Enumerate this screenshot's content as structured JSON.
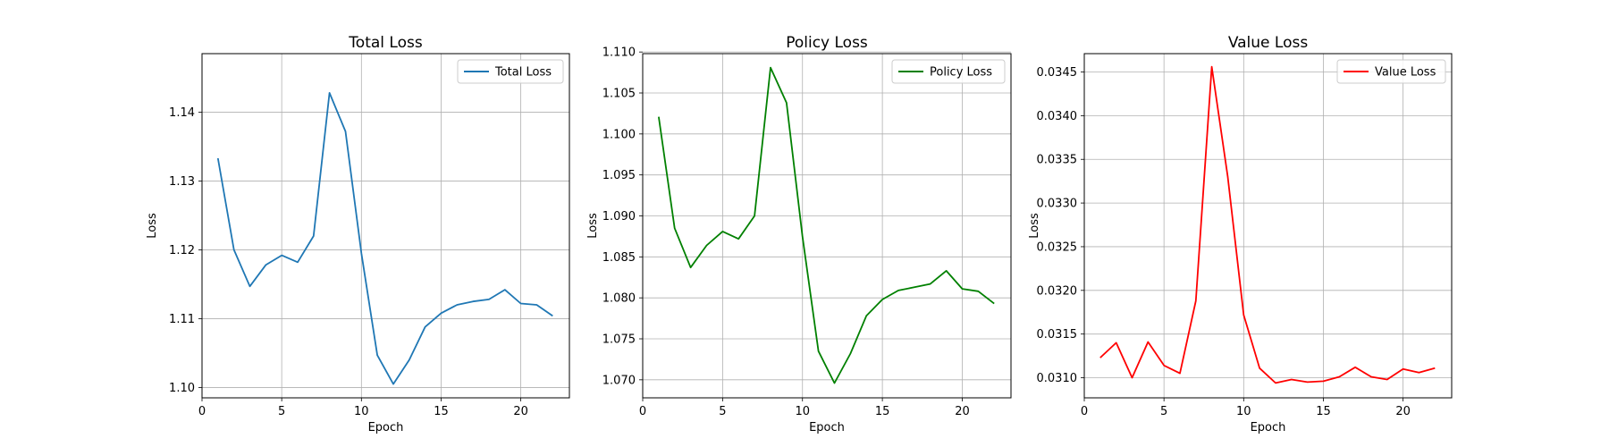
{
  "chart_data": [
    {
      "type": "line",
      "title": "Total Loss",
      "xlabel": "Epoch",
      "ylabel": "Loss",
      "xlim": [
        0,
        23.05
      ],
      "ylim": [
        1.0985,
        1.1485
      ],
      "xticks": [
        0,
        5,
        10,
        15,
        20
      ],
      "yticks": [
        1.1,
        1.11,
        1.12,
        1.13,
        1.14
      ],
      "ytick_labels": [
        "1.10",
        "1.11",
        "1.12",
        "1.13",
        "1.14"
      ],
      "grid": true,
      "legend": "top-right",
      "series": [
        {
          "name": "Total Loss",
          "color": "#1f77b4",
          "x": [
            1,
            2,
            3,
            4,
            5,
            6,
            7,
            8,
            9,
            10,
            11,
            12,
            13,
            14,
            15,
            16,
            17,
            18,
            19,
            20,
            21,
            22
          ],
          "values": [
            1.1333,
            1.12,
            1.1147,
            1.1178,
            1.1192,
            1.1182,
            1.122,
            1.1428,
            1.1372,
            1.1195,
            1.1047,
            1.1005,
            1.104,
            1.1088,
            1.1108,
            1.112,
            1.1125,
            1.1128,
            1.1142,
            1.1122,
            1.112,
            1.1104
          ]
        }
      ]
    },
    {
      "type": "line",
      "title": "Policy Loss",
      "xlabel": "Epoch",
      "ylabel": "Loss",
      "xlim": [
        0,
        23.05
      ],
      "ylim": [
        1.0678,
        1.1098
      ],
      "xticks": [
        0,
        5,
        10,
        15,
        20
      ],
      "yticks": [
        1.07,
        1.075,
        1.08,
        1.085,
        1.09,
        1.095,
        1.1,
        1.105,
        1.11
      ],
      "ytick_labels": [
        "1.070",
        "1.075",
        "1.080",
        "1.085",
        "1.090",
        "1.095",
        "1.100",
        "1.105",
        "1.110"
      ],
      "grid": true,
      "legend": "top-right",
      "series": [
        {
          "name": "Policy Loss",
          "color": "#008000",
          "x": [
            1,
            2,
            3,
            4,
            5,
            6,
            7,
            8,
            9,
            10,
            11,
            12,
            13,
            14,
            15,
            16,
            17,
            18,
            19,
            20,
            21,
            22
          ],
          "values": [
            1.1021,
            1.0885,
            1.0837,
            1.0864,
            1.0881,
            1.0872,
            1.09,
            1.1081,
            1.1038,
            1.0875,
            1.0735,
            1.0696,
            1.0732,
            1.0778,
            1.0798,
            1.0809,
            1.0813,
            1.0817,
            1.0833,
            1.0811,
            1.0808,
            1.0793
          ]
        }
      ]
    },
    {
      "type": "line",
      "title": "Value Loss",
      "xlabel": "Epoch",
      "ylabel": "Loss",
      "xlim": [
        0,
        23.05
      ],
      "ylim": [
        0.03077,
        0.03471
      ],
      "xticks": [
        0,
        5,
        10,
        15,
        20
      ],
      "yticks": [
        0.031,
        0.0315,
        0.032,
        0.0325,
        0.033,
        0.0335,
        0.034,
        0.0345
      ],
      "ytick_labels": [
        "0.0310",
        "0.0315",
        "0.0320",
        "0.0325",
        "0.0330",
        "0.0335",
        "0.0340",
        "0.0345"
      ],
      "grid": true,
      "legend": "top-right",
      "series": [
        {
          "name": "Value Loss",
          "color": "#ff0000",
          "x": [
            1,
            2,
            3,
            4,
            5,
            6,
            7,
            8,
            9,
            10,
            11,
            12,
            13,
            14,
            15,
            16,
            17,
            18,
            19,
            20,
            21,
            22
          ],
          "values": [
            0.03123,
            0.0314,
            0.031,
            0.03141,
            0.03114,
            0.03105,
            0.03188,
            0.03456,
            0.0333,
            0.03172,
            0.03111,
            0.03094,
            0.03098,
            0.03095,
            0.03096,
            0.03101,
            0.03112,
            0.03101,
            0.03098,
            0.0311,
            0.03106,
            0.03111
          ]
        }
      ]
    }
  ]
}
